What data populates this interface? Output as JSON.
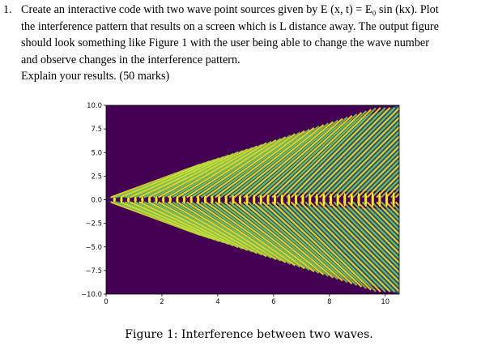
{
  "question": {
    "number": "1.",
    "lines": [
      "Create an interactive code with two wave point sources given by E (x, t) = E₀ sin (kx). Plot",
      "the interference pattern that results on a screen which is L distance away. The output figure",
      "should look something like Figure 1 with the user being able to change the wave number",
      "and observe changes in the interference pattern."
    ],
    "explain": "Explain your results.  (50 marks)"
  },
  "chart_data": {
    "type": "heatmap",
    "title": "",
    "xlabel": "",
    "ylabel": "",
    "xlim": [
      0,
      10.5
    ],
    "ylim": [
      -10,
      10
    ],
    "xticks": [
      0,
      2,
      4,
      6,
      8,
      10
    ],
    "yticks": [
      10.0,
      7.5,
      5.0,
      2.5,
      0.0,
      -2.5,
      -5.0,
      -7.5,
      -10.0
    ],
    "xtick_labels": [
      "0",
      "2",
      "4",
      "6",
      "8",
      "10"
    ],
    "ytick_labels": [
      "10.0",
      "7.5",
      "5.0",
      "2.5",
      "0.0",
      "−2.5",
      "−5.0",
      "−7.5",
      "−10.0"
    ],
    "colormap": "viridis",
    "background_color": "#440154",
    "pattern": "two-source interference fringes spreading from origin",
    "fringe_color_peak": "#fde725",
    "fringe_color_mid": "#21918c"
  },
  "caption": "Figure 1: Interference between two waves."
}
